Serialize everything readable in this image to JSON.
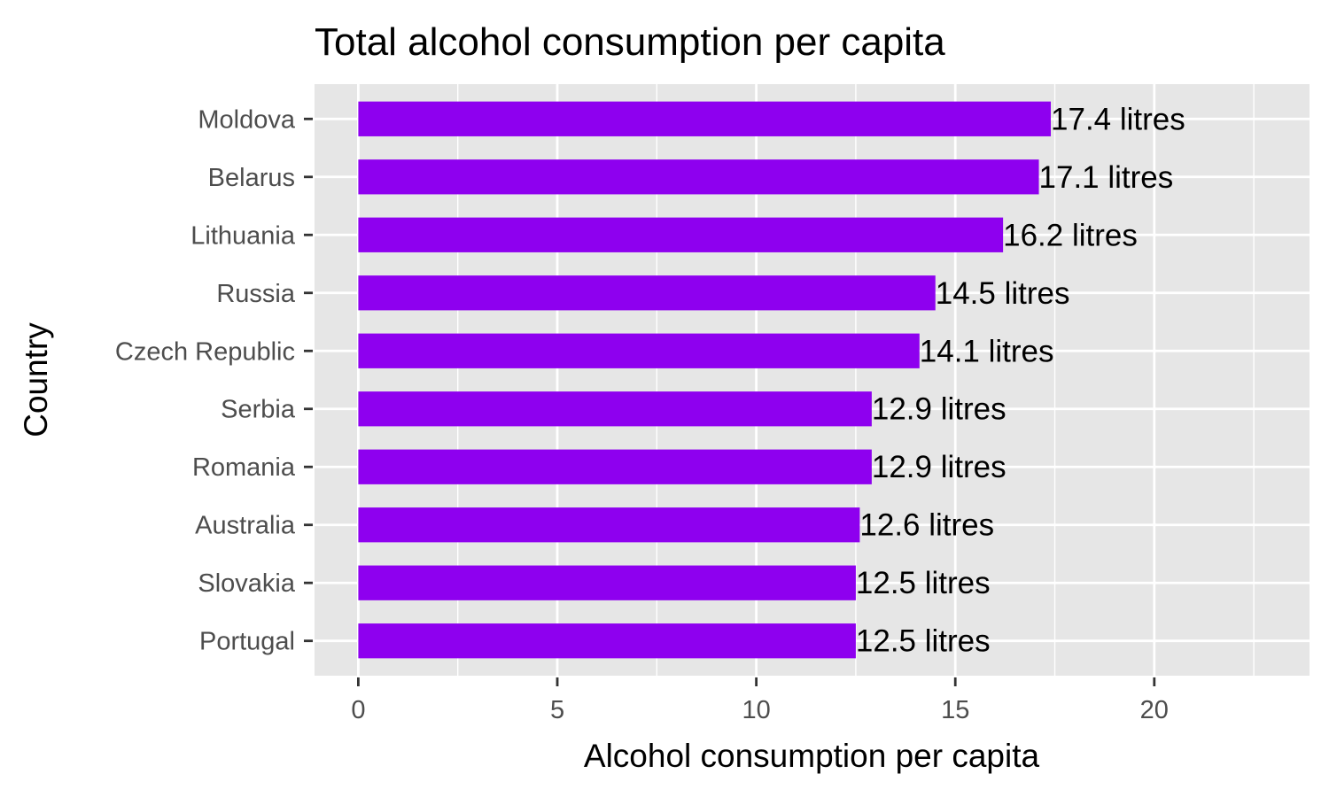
{
  "chart_data": {
    "type": "bar",
    "orientation": "horizontal",
    "title": "Total alcohol consumption per capita",
    "xlabel": "Alcohol consumption per capita",
    "ylabel": "Country",
    "categories": [
      "Moldova",
      "Belarus",
      "Lithuania",
      "Russia",
      "Czech Republic",
      "Serbia",
      "Romania",
      "Australia",
      "Slovakia",
      "Portugal"
    ],
    "values": [
      17.4,
      17.1,
      16.2,
      14.5,
      14.1,
      12.9,
      12.9,
      12.6,
      12.5,
      12.5
    ],
    "data_labels": [
      "17.4  litres",
      "17.1  litres",
      "16.2  litres",
      "14.5  litres",
      "14.1  litres",
      "12.9  litres",
      "12.9  litres",
      "12.6  litres",
      "12.5  litres",
      "12.5  litres"
    ],
    "x_ticks": [
      "0",
      "5",
      "10",
      "15",
      "20"
    ],
    "xlim": [
      -1.1,
      23.9
    ],
    "grid": true,
    "legend": "none",
    "colors": {
      "bar": "#8e00ef",
      "panel_background": "#e6e6e6",
      "grid": "#ffffff",
      "tick_text": "#4d4d4d",
      "tick_mark": "#333333"
    }
  }
}
